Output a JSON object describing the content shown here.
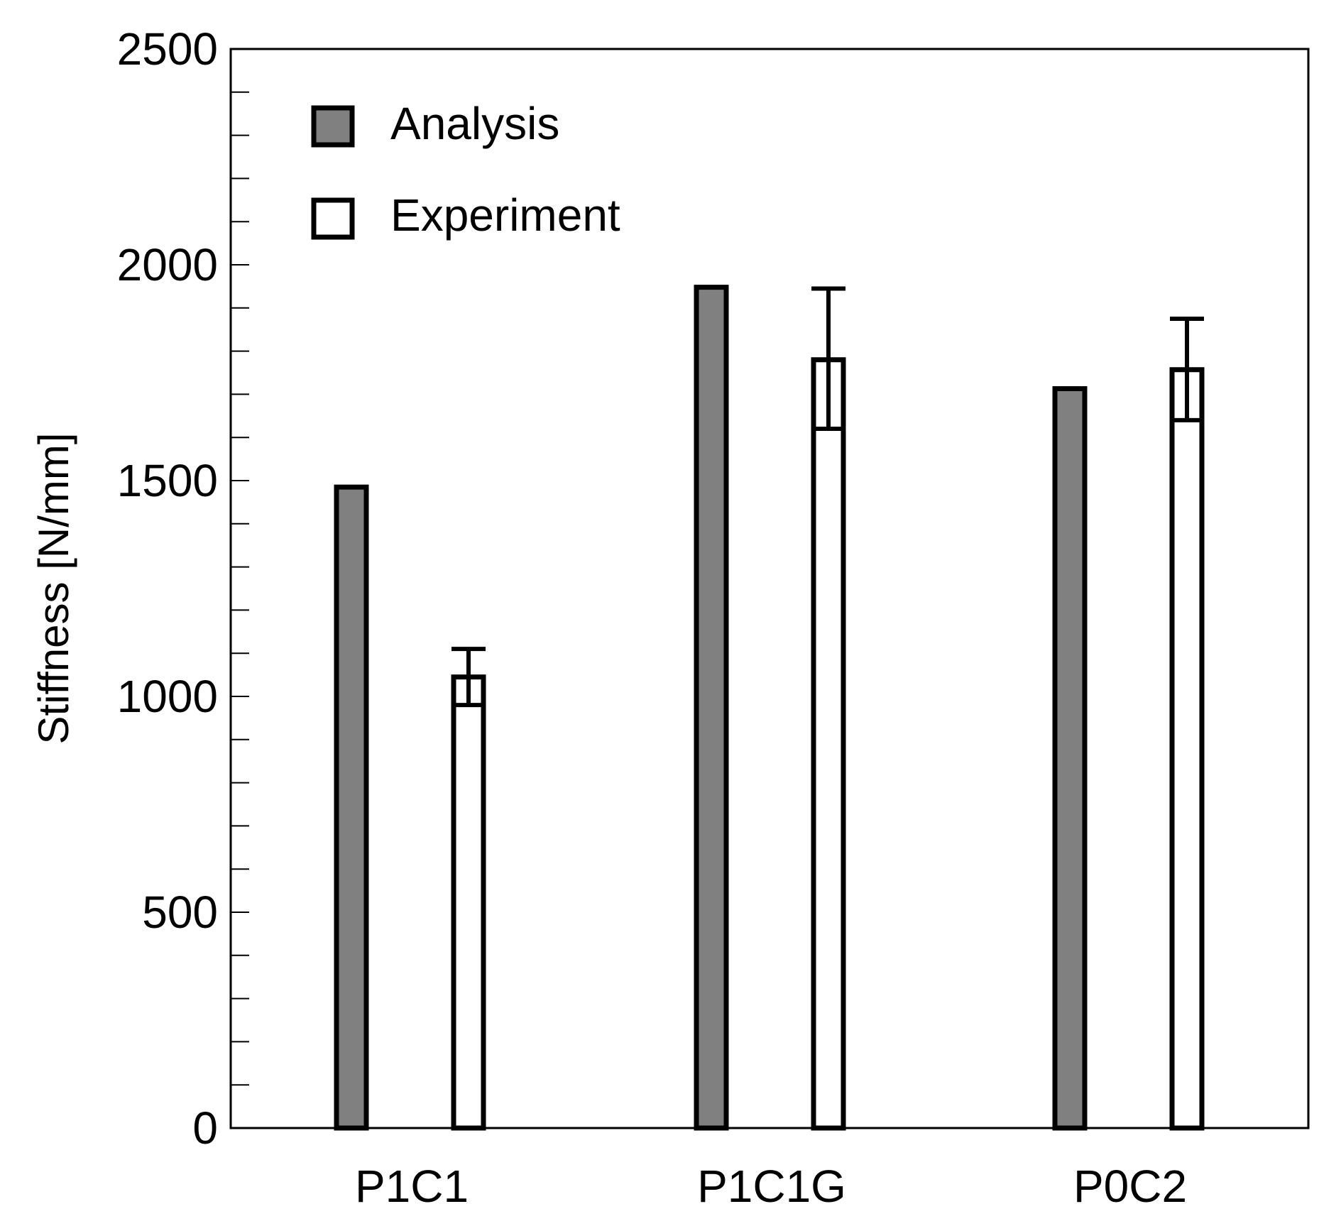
{
  "chart_data": {
    "type": "bar",
    "title": "",
    "xlabel": "",
    "ylabel": "Stiffness [N/mm]",
    "ylim": [
      0,
      2500
    ],
    "yticks": [
      0,
      500,
      1000,
      1500,
      2000,
      2500
    ],
    "ytick_labels": [
      "0",
      "500",
      "1000",
      "1500",
      "2000",
      "2500"
    ],
    "minor_tick_step": 100,
    "grid": false,
    "legend_position": "top-left",
    "categories": [
      "P1C1",
      "P1C1G",
      "P0C2"
    ],
    "series": [
      {
        "name": "Analysis",
        "color": "#808080",
        "values": [
          1485,
          1948,
          1713
        ]
      },
      {
        "name": "Experiment",
        "color": "#ffffff",
        "values": [
          1045,
          1780,
          1757
        ],
        "error_low": [
          980,
          1620,
          1640
        ],
        "error_high": [
          1110,
          1945,
          1875
        ]
      }
    ]
  }
}
